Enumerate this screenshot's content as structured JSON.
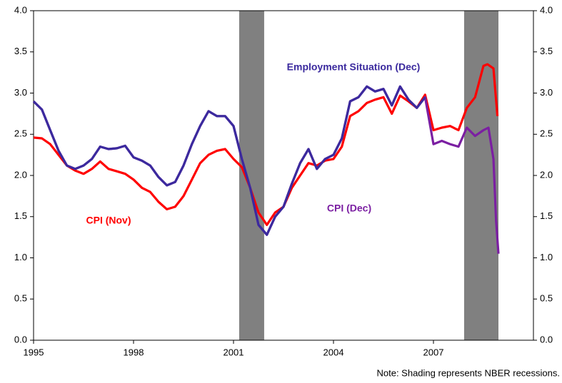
{
  "chart_data": {
    "type": "line",
    "note": "Note: Shading represents NBER recessions.",
    "xlim": [
      1995,
      2010
    ],
    "xticks": [
      1995,
      1998,
      2001,
      2004,
      2007
    ],
    "ylim": [
      0,
      4
    ],
    "yticks": [
      {
        "value": 0,
        "label": "0.0"
      },
      {
        "value": 0.5,
        "label": "0.5"
      },
      {
        "value": 1,
        "label": "1.0"
      },
      {
        "value": 1.5,
        "label": "1.5"
      },
      {
        "value": 2,
        "label": "2.0"
      },
      {
        "value": 2.5,
        "label": "2.5"
      },
      {
        "value": 3,
        "label": "3.0"
      },
      {
        "value": 3.5,
        "label": "3.5"
      },
      {
        "value": 4,
        "label": "4.0"
      }
    ],
    "y2lim": [
      0,
      4
    ],
    "y2ticks": [
      {
        "value": 0,
        "label": "0.0"
      },
      {
        "value": 0.5,
        "label": "0.5"
      },
      {
        "value": 1,
        "label": "1.0"
      },
      {
        "value": 1.5,
        "label": "1.5"
      },
      {
        "value": 2,
        "label": "2.0"
      },
      {
        "value": 2.5,
        "label": "2.5"
      },
      {
        "value": 3,
        "label": "3.0"
      },
      {
        "value": 3.5,
        "label": "3.5"
      },
      {
        "value": 4,
        "label": "4.0"
      }
    ],
    "shading": [
      {
        "start": 2001.17,
        "end": 2001.92,
        "color": "#808080"
      },
      {
        "start": 2007.92,
        "end": 2008.95,
        "color": "#808080"
      }
    ],
    "series": [
      {
        "name": "CPI (Nov)",
        "color": "#ff0000",
        "x": [
          1995,
          1995.25,
          1995.5,
          1995.75,
          1996,
          1996.25,
          1996.5,
          1996.75,
          1997,
          1997.25,
          1997.5,
          1997.75,
          1998,
          1998.25,
          1998.5,
          1998.75,
          1999,
          1999.25,
          1999.5,
          1999.75,
          2000,
          2000.25,
          2000.5,
          2000.75,
          2001,
          2001.25,
          2001.5,
          2001.75,
          2002,
          2002.25,
          2002.5,
          2002.75,
          2003,
          2003.25,
          2003.5,
          2003.75,
          2004,
          2004.25,
          2004.5,
          2004.75,
          2005,
          2005.25,
          2005.5,
          2005.75,
          2006,
          2006.25,
          2006.5,
          2006.75,
          2007,
          2007.25,
          2007.5,
          2007.75,
          2008,
          2008.25,
          2008.5,
          2008.62,
          2008.8,
          2008.92
        ],
        "values": [
          2.46,
          2.45,
          2.38,
          2.25,
          2.12,
          2.06,
          2.02,
          2.08,
          2.17,
          2.08,
          2.05,
          2.02,
          1.95,
          1.85,
          1.8,
          1.68,
          1.59,
          1.62,
          1.75,
          1.95,
          2.15,
          2.25,
          2.3,
          2.32,
          2.2,
          2.1,
          1.85,
          1.55,
          1.4,
          1.55,
          1.62,
          1.85,
          2.0,
          2.15,
          2.12,
          2.18,
          2.2,
          2.35,
          2.72,
          2.78,
          2.88,
          2.92,
          2.95,
          2.75,
          2.97,
          2.9,
          2.82,
          2.98,
          2.55,
          2.58,
          2.6,
          2.55,
          2.82,
          2.95,
          3.33,
          3.35,
          3.3,
          2.72
        ]
      },
      {
        "name": "CPI (Dec)",
        "color": "#7b1fa2",
        "x": [
          1995,
          1995.25,
          1995.5,
          1995.75,
          1996,
          1996.25,
          1996.5,
          1996.75,
          1997,
          1997.25,
          1997.5,
          1997.75,
          1998,
          1998.25,
          1998.5,
          1998.75,
          1999,
          1999.25,
          1999.5,
          1999.75,
          2000,
          2000.25,
          2000.5,
          2000.75,
          2001,
          2001.25,
          2001.5,
          2001.75,
          2002,
          2002.25,
          2002.5,
          2002.75,
          2003,
          2003.25,
          2003.5,
          2003.75,
          2004,
          2004.25,
          2004.5,
          2004.75,
          2005,
          2005.25,
          2005.5,
          2005.75,
          2006,
          2006.25,
          2006.5,
          2006.75,
          2007,
          2007.25,
          2007.5,
          2007.75,
          2008,
          2008.25,
          2008.5,
          2008.65,
          2008.8,
          2008.88,
          2008.95
        ],
        "values": [
          2.9,
          2.8,
          2.55,
          2.3,
          2.12,
          2.08,
          2.12,
          2.2,
          2.35,
          2.32,
          2.33,
          2.36,
          2.22,
          2.18,
          2.12,
          1.98,
          1.88,
          1.92,
          2.12,
          2.38,
          2.6,
          2.78,
          2.72,
          2.72,
          2.6,
          2.2,
          1.85,
          1.4,
          1.28,
          1.5,
          1.62,
          1.9,
          2.15,
          2.32,
          2.08,
          2.2,
          2.25,
          2.45,
          2.9,
          2.95,
          3.08,
          3.02,
          3.05,
          2.85,
          3.08,
          2.92,
          2.82,
          2.95,
          2.38,
          2.42,
          2.38,
          2.35,
          2.58,
          2.48,
          2.55,
          2.58,
          2.2,
          1.45,
          1.05
        ]
      },
      {
        "name": "Employment Situation (Dec)",
        "color": "#3b2a9e",
        "x": [
          1995,
          1995.25,
          1995.5,
          1995.75,
          1996,
          1996.25,
          1996.5,
          1996.75,
          1997,
          1997.25,
          1997.5,
          1997.75,
          1998,
          1998.25,
          1998.5,
          1998.75,
          1999,
          1999.25,
          1999.5,
          1999.75,
          2000,
          2000.25,
          2000.5,
          2000.75,
          2001,
          2001.25,
          2001.5,
          2001.75,
          2002,
          2002.25,
          2002.5,
          2002.75,
          2003,
          2003.25,
          2003.5,
          2003.75,
          2004,
          2004.25,
          2004.5,
          2004.75,
          2005,
          2005.25,
          2005.5,
          2005.75,
          2006,
          2006.25,
          2006.5,
          2006.75
        ],
        "values": [
          2.9,
          2.8,
          2.55,
          2.3,
          2.12,
          2.08,
          2.12,
          2.2,
          2.35,
          2.32,
          2.33,
          2.36,
          2.22,
          2.18,
          2.12,
          1.98,
          1.88,
          1.92,
          2.12,
          2.38,
          2.6,
          2.78,
          2.72,
          2.72,
          2.6,
          2.2,
          1.85,
          1.4,
          1.28,
          1.5,
          1.62,
          1.9,
          2.15,
          2.32,
          2.08,
          2.2,
          2.25,
          2.45,
          2.9,
          2.95,
          3.08,
          3.02,
          3.05,
          2.85,
          3.08,
          2.92,
          2.82,
          2.95
        ]
      }
    ]
  }
}
